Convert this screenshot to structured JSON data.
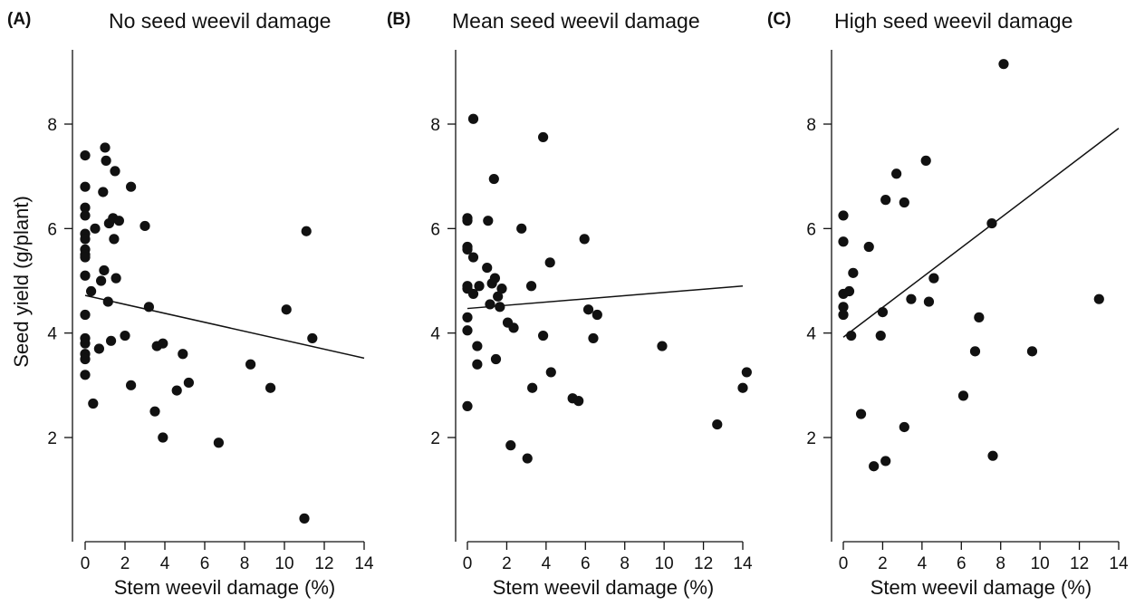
{
  "chart_data": [
    {
      "type": "scatter",
      "panel": "(A)",
      "title": "No seed weevil damage",
      "xlabel": "Stem weevil damage (%)",
      "ylabel": "Seed yield (g/plant)",
      "xlim": [
        0,
        14
      ],
      "ylim": [
        0,
        9.5
      ],
      "xticks": [
        "0",
        "2",
        "4",
        "6",
        "8",
        "10",
        "12",
        "14"
      ],
      "yticks": [
        "2",
        "4",
        "6",
        "8"
      ],
      "grid": false,
      "points": [
        [
          0.0,
          7.4
        ],
        [
          0.0,
          6.8
        ],
        [
          0.0,
          6.4
        ],
        [
          0.0,
          6.25
        ],
        [
          0.0,
          5.9
        ],
        [
          0.0,
          5.8
        ],
        [
          0.0,
          5.6
        ],
        [
          0.0,
          5.5
        ],
        [
          0.0,
          5.45
        ],
        [
          0.0,
          5.1
        ],
        [
          0.0,
          4.35
        ],
        [
          0.0,
          3.9
        ],
        [
          0.0,
          3.8
        ],
        [
          0.0,
          3.6
        ],
        [
          0.0,
          3.5
        ],
        [
          0.0,
          3.2
        ],
        [
          0.3,
          4.8
        ],
        [
          0.4,
          2.65
        ],
        [
          0.5,
          6.0
        ],
        [
          0.7,
          3.7
        ],
        [
          0.8,
          5.0
        ],
        [
          0.9,
          6.7
        ],
        [
          0.95,
          5.2
        ],
        [
          1.0,
          7.55
        ],
        [
          1.05,
          7.3
        ],
        [
          1.15,
          4.6
        ],
        [
          1.2,
          6.1
        ],
        [
          1.3,
          3.85
        ],
        [
          1.4,
          6.2
        ],
        [
          1.45,
          5.8
        ],
        [
          1.5,
          7.1
        ],
        [
          1.55,
          5.05
        ],
        [
          1.7,
          6.15
        ],
        [
          2.0,
          3.95
        ],
        [
          2.3,
          6.8
        ],
        [
          2.3,
          3.0
        ],
        [
          3.0,
          6.05
        ],
        [
          3.2,
          4.5
        ],
        [
          3.5,
          2.5
        ],
        [
          3.6,
          3.75
        ],
        [
          3.9,
          3.8
        ],
        [
          3.9,
          2.0
        ],
        [
          4.6,
          2.9
        ],
        [
          4.9,
          3.6
        ],
        [
          5.2,
          3.05
        ],
        [
          6.7,
          1.9
        ],
        [
          8.3,
          3.4
        ],
        [
          9.3,
          2.95
        ],
        [
          10.1,
          4.45
        ],
        [
          11.0,
          0.45
        ],
        [
          11.1,
          5.95
        ],
        [
          11.4,
          3.9
        ]
      ],
      "fit": {
        "x": [
          0,
          14
        ],
        "y": [
          4.72,
          3.52
        ]
      }
    },
    {
      "type": "scatter",
      "panel": "(B)",
      "title": "Mean seed weevil damage",
      "xlabel": "Stem weevil damage (%)",
      "ylabel": "",
      "xlim": [
        0,
        14
      ],
      "ylim": [
        0,
        9.5
      ],
      "xticks": [
        "0",
        "2",
        "4",
        "6",
        "8",
        "10",
        "12",
        "14"
      ],
      "yticks": [
        "2",
        "4",
        "6",
        "8"
      ],
      "grid": false,
      "points": [
        [
          0.0,
          6.2
        ],
        [
          0.0,
          6.15
        ],
        [
          0.0,
          5.65
        ],
        [
          0.0,
          5.6
        ],
        [
          0.0,
          4.9
        ],
        [
          0.0,
          4.85
        ],
        [
          0.0,
          4.3
        ],
        [
          0.0,
          4.05
        ],
        [
          0.0,
          2.6
        ],
        [
          0.3,
          8.1
        ],
        [
          0.3,
          5.45
        ],
        [
          0.3,
          4.75
        ],
        [
          0.5,
          3.4
        ],
        [
          0.5,
          3.75
        ],
        [
          0.6,
          4.9
        ],
        [
          1.0,
          5.25
        ],
        [
          1.05,
          6.15
        ],
        [
          1.15,
          4.55
        ],
        [
          1.25,
          4.95
        ],
        [
          1.35,
          6.95
        ],
        [
          1.4,
          5.05
        ],
        [
          1.45,
          3.5
        ],
        [
          1.55,
          4.7
        ],
        [
          1.65,
          4.5
        ],
        [
          1.75,
          4.85
        ],
        [
          2.05,
          4.2
        ],
        [
          2.2,
          1.85
        ],
        [
          2.35,
          4.1
        ],
        [
          2.75,
          6.0
        ],
        [
          3.05,
          1.6
        ],
        [
          3.25,
          4.9
        ],
        [
          3.3,
          2.95
        ],
        [
          3.85,
          7.75
        ],
        [
          3.85,
          3.95
        ],
        [
          4.2,
          5.35
        ],
        [
          4.25,
          3.25
        ],
        [
          5.35,
          2.75
        ],
        [
          5.65,
          2.7
        ],
        [
          5.95,
          5.8
        ],
        [
          6.15,
          4.45
        ],
        [
          6.4,
          3.9
        ],
        [
          6.6,
          4.35
        ],
        [
          9.9,
          3.75
        ],
        [
          12.7,
          2.25
        ],
        [
          14.0,
          2.95
        ],
        [
          14.2,
          3.25
        ]
      ],
      "fit": {
        "x": [
          0,
          14
        ],
        "y": [
          4.47,
          4.9
        ]
      }
    },
    {
      "type": "scatter",
      "panel": "(C)",
      "title": "High seed weevil damage",
      "xlabel": "Stem weevil damage (%)",
      "ylabel": "",
      "xlim": [
        0,
        14
      ],
      "ylim": [
        0,
        9.5
      ],
      "xticks": [
        "0",
        "2",
        "4",
        "6",
        "8",
        "10",
        "12",
        "14"
      ],
      "yticks": [
        "2",
        "4",
        "6",
        "8"
      ],
      "grid": false,
      "points": [
        [
          0.0,
          6.25
        ],
        [
          0.0,
          5.75
        ],
        [
          0.0,
          4.75
        ],
        [
          0.0,
          4.5
        ],
        [
          0.0,
          4.35
        ],
        [
          0.3,
          4.8
        ],
        [
          0.4,
          3.95
        ],
        [
          0.5,
          5.15
        ],
        [
          0.9,
          2.45
        ],
        [
          1.3,
          5.65
        ],
        [
          1.55,
          1.45
        ],
        [
          1.9,
          3.95
        ],
        [
          2.0,
          4.4
        ],
        [
          2.15,
          6.55
        ],
        [
          2.15,
          1.55
        ],
        [
          2.7,
          7.05
        ],
        [
          3.1,
          6.5
        ],
        [
          3.1,
          2.2
        ],
        [
          3.45,
          4.65
        ],
        [
          4.2,
          7.3
        ],
        [
          4.35,
          4.6
        ],
        [
          4.6,
          5.05
        ],
        [
          6.1,
          2.8
        ],
        [
          6.7,
          3.65
        ],
        [
          6.9,
          4.3
        ],
        [
          7.55,
          6.1
        ],
        [
          7.6,
          1.65
        ],
        [
          8.15,
          9.15
        ],
        [
          9.6,
          3.65
        ],
        [
          13.0,
          4.65
        ]
      ],
      "fit": {
        "x": [
          0,
          14
        ],
        "y": [
          3.92,
          7.92
        ]
      }
    }
  ]
}
